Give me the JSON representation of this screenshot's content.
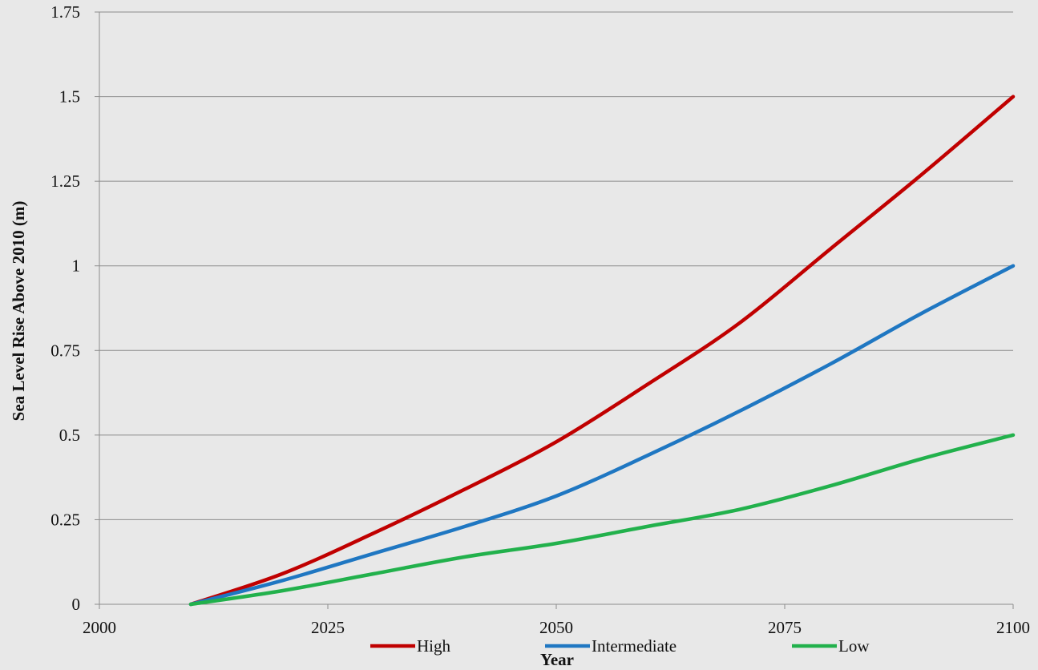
{
  "chart_data": {
    "type": "line",
    "xlabel": "Year",
    "ylabel": "Sea Level Rise Above 2010 (m)",
    "xlim": [
      2000,
      2100
    ],
    "ylim": [
      0,
      1.75
    ],
    "x_ticks": [
      "2000",
      "2025",
      "2050",
      "2075",
      "2100"
    ],
    "y_ticks": [
      "0",
      "0.25",
      "0.5",
      "0.75",
      "1",
      "1.25",
      "1.5",
      "1.75"
    ],
    "x_tick_values": [
      2000,
      2025,
      2050,
      2075,
      2100
    ],
    "y_tick_values": [
      0,
      0.25,
      0.5,
      0.75,
      1,
      1.25,
      1.5,
      1.75
    ],
    "grid": "horizontal",
    "legend_position": "bottom",
    "x": [
      2010,
      2020,
      2030,
      2040,
      2050,
      2060,
      2070,
      2080,
      2090,
      2100
    ],
    "series": [
      {
        "name": "High",
        "color": "#c00000",
        "values": [
          0,
          0.09,
          0.21,
          0.34,
          0.48,
          0.65,
          0.83,
          1.05,
          1.27,
          1.5
        ]
      },
      {
        "name": "Intermediate",
        "color": "#1f77c2",
        "values": [
          0,
          0.07,
          0.15,
          0.23,
          0.32,
          0.44,
          0.57,
          0.71,
          0.86,
          1.0
        ]
      },
      {
        "name": "Low",
        "color": "#22b14c",
        "values": [
          0,
          0.04,
          0.09,
          0.14,
          0.18,
          0.23,
          0.28,
          0.35,
          0.43,
          0.5
        ]
      }
    ]
  }
}
